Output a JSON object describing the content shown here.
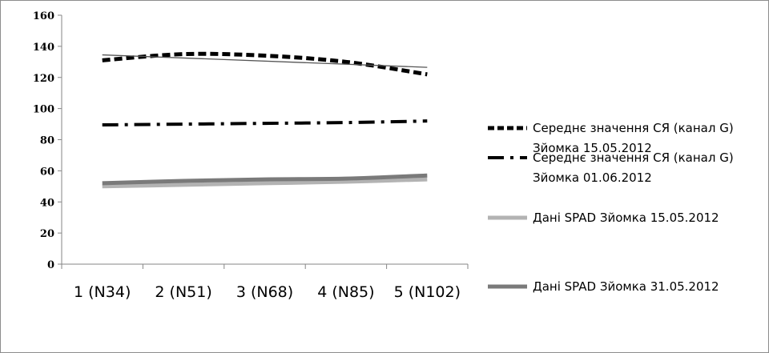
{
  "chart_data": {
    "type": "line",
    "title": "",
    "xlabel": "",
    "ylabel": "",
    "categories": [
      "1 (N34)",
      "2 (N51)",
      "3 (N68)",
      "4 (N85)",
      "5 (N102)"
    ],
    "ylim": [
      0,
      160
    ],
    "yticks": [
      0,
      20,
      40,
      60,
      80,
      100,
      120,
      140,
      160
    ],
    "grid": false,
    "legend_position": "right",
    "series": [
      {
        "name_lines": [
          "Середнє значення СЯ (канал G)",
          "Зйомка 15.05.2012"
        ],
        "values": [
          131,
          135,
          134,
          130,
          122
        ],
        "color": "#000000",
        "style": "dashed"
      },
      {
        "name_lines": [
          "Середнє значення СЯ (канал G)",
          "Зйомка 01.06.2012"
        ],
        "values": [
          89.5,
          90,
          90.5,
          91,
          92
        ],
        "color": "#000000",
        "style": "dash-dot"
      },
      {
        "name_lines": [
          "Дані SPAD Зйомка 15.05.2012"
        ],
        "values": [
          50,
          51,
          52,
          53,
          54.5
        ],
        "color": "#b3b3b3",
        "style": "solid"
      },
      {
        "name_lines": [
          "Дані SPAD Зйомка 31.05.2012"
        ],
        "values": [
          52,
          53.5,
          54.5,
          55,
          57
        ],
        "color": "#7a7a7a",
        "style": "solid"
      }
    ],
    "trendline": {
      "values": [
        134.5,
        132.5,
        130.5,
        128.5,
        126.5
      ],
      "color": "#555555"
    }
  }
}
